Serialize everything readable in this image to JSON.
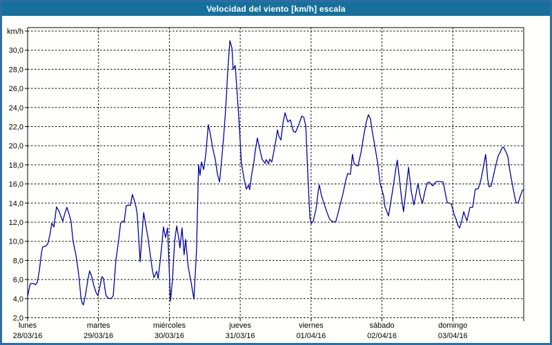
{
  "window": {
    "title": "Velocidad del viento [km/h] escala"
  },
  "chart_data": {
    "type": "line",
    "title": "Velocidad del viento [km/h] escala",
    "grid": "dashed",
    "legend": "none",
    "y_axis": {
      "unit_label": "km/h",
      "min": 2,
      "max": 32,
      "tick_step": 2,
      "tick_labels_top_to_bottom": [
        "30,0",
        "28,0",
        "26,0",
        "24,0",
        "22,0",
        "20,0",
        "18,0",
        "16,0",
        "14,0",
        "12,0",
        "10,0",
        "8,0",
        "6,0",
        "4,0",
        "2,0"
      ]
    },
    "x_axis": {
      "span_days": 7,
      "days": [
        {
          "name": "lunes",
          "date": "28/03/16"
        },
        {
          "name": "martes",
          "date": "29/03/16"
        },
        {
          "name": "miércoles",
          "date": "30/03/16"
        },
        {
          "name": "jueves",
          "date": "31/03/16"
        },
        {
          "name": "viernes",
          "date": "01/04/16"
        },
        {
          "name": "sábado",
          "date": "02/04/16"
        },
        {
          "name": "domingo",
          "date": "03/04/16"
        }
      ]
    },
    "series": {
      "name": "Velocidad del viento",
      "color": "#0000a0",
      "units": "km/h",
      "x_units": "hours_since_monday_0000",
      "points": [
        [
          0,
          4.2
        ],
        [
          0.5,
          5.0
        ],
        [
          0.9,
          5.55
        ],
        [
          1.9,
          5.6
        ],
        [
          2.6,
          5.45
        ],
        [
          3.3,
          5.7
        ],
        [
          4,
          7
        ],
        [
          4.7,
          8.8
        ],
        [
          5.1,
          9.4
        ],
        [
          6.1,
          9.5
        ],
        [
          6.8,
          9.7
        ],
        [
          7.5,
          10.6
        ],
        [
          8.2,
          11.9
        ],
        [
          8.9,
          11.5
        ],
        [
          9.8,
          13.6
        ],
        [
          10.7,
          13.1
        ],
        [
          11.9,
          12.1
        ],
        [
          12.6,
          12.9
        ],
        [
          13.3,
          13.55
        ],
        [
          14,
          12.9
        ],
        [
          14.7,
          12.1
        ],
        [
          15.4,
          10
        ],
        [
          16.4,
          8.5
        ],
        [
          17.1,
          7
        ],
        [
          17.5,
          5.95
        ],
        [
          18,
          4.3
        ],
        [
          18.5,
          3.5
        ],
        [
          18.9,
          3.35
        ],
        [
          19.6,
          4.4
        ],
        [
          20.3,
          5.8
        ],
        [
          21,
          6.9
        ],
        [
          21.7,
          6.3
        ],
        [
          22.4,
          5.4
        ],
        [
          23.1,
          4.7
        ],
        [
          23.8,
          4.3
        ],
        [
          24.5,
          5.3
        ],
        [
          25.2,
          6.3
        ],
        [
          25.7,
          6.1
        ],
        [
          26.2,
          5
        ],
        [
          26.6,
          4.3
        ],
        [
          27.3,
          4.05
        ],
        [
          28.3,
          4
        ],
        [
          29,
          4.3
        ],
        [
          29.9,
          8.05
        ],
        [
          30.8,
          10
        ],
        [
          31.5,
          11.9
        ],
        [
          32.2,
          12.1
        ],
        [
          32.7,
          12
        ],
        [
          33.4,
          13.7
        ],
        [
          34.1,
          13.8
        ],
        [
          34.8,
          13.75
        ],
        [
          35.5,
          14.9
        ],
        [
          36.2,
          14.2
        ],
        [
          36.7,
          13.6
        ],
        [
          37.1,
          12.85
        ],
        [
          37.6,
          10.5
        ],
        [
          38.1,
          7.85
        ],
        [
          38.8,
          11
        ],
        [
          39.3,
          13
        ],
        [
          40,
          11.7
        ],
        [
          40.7,
          10.5
        ],
        [
          41.6,
          8.5
        ],
        [
          42.3,
          6.9
        ],
        [
          42.8,
          6.2
        ],
        [
          43.7,
          6.85
        ],
        [
          44.2,
          6.1
        ],
        [
          45.1,
          8.5
        ],
        [
          46,
          11.5
        ],
        [
          46.7,
          10.4
        ],
        [
          47.4,
          11.4
        ],
        [
          47.9,
          7.5
        ],
        [
          48.4,
          3.75
        ],
        [
          49.1,
          6.1
        ],
        [
          49.8,
          10
        ],
        [
          50.5,
          11.6
        ],
        [
          51.2,
          10.3
        ],
        [
          51.6,
          9.3
        ],
        [
          52.3,
          11.4
        ],
        [
          53,
          8.6
        ],
        [
          53.5,
          10.2
        ],
        [
          54.4,
          7.3
        ],
        [
          55.4,
          5.65
        ],
        [
          56.3,
          3.95
        ],
        [
          57.2,
          9
        ],
        [
          57.9,
          18
        ],
        [
          58.4,
          16.9
        ],
        [
          58.9,
          18.3
        ],
        [
          59.6,
          17.5
        ],
        [
          60.3,
          19
        ],
        [
          61.2,
          22.2
        ],
        [
          61.9,
          21.2
        ],
        [
          62.6,
          19.9
        ],
        [
          63.6,
          18.5
        ],
        [
          64.3,
          17
        ],
        [
          65,
          16.2
        ],
        [
          65.7,
          18.5
        ],
        [
          66.4,
          21
        ],
        [
          67.1,
          24
        ],
        [
          67.8,
          28
        ],
        [
          68.5,
          31
        ],
        [
          69.2,
          30.2
        ],
        [
          69.6,
          28
        ],
        [
          70.3,
          28.4
        ],
        [
          71,
          25.3
        ],
        [
          71.7,
          22
        ],
        [
          72.4,
          18.1
        ],
        [
          73.4,
          16.4
        ],
        [
          74.1,
          15.45
        ],
        [
          74.8,
          15.9
        ],
        [
          75.2,
          15.4
        ],
        [
          75.9,
          17
        ],
        [
          76.6,
          18.2
        ],
        [
          77.1,
          19.5
        ],
        [
          77.8,
          20.8
        ],
        [
          78.5,
          19.8
        ],
        [
          79.4,
          18.6
        ],
        [
          80.4,
          18.15
        ],
        [
          80.8,
          18.55
        ],
        [
          81.6,
          18.1
        ],
        [
          82,
          18.6
        ],
        [
          82.7,
          18.3
        ],
        [
          83.4,
          19.4
        ],
        [
          84.1,
          20.6
        ],
        [
          84.6,
          21.65
        ],
        [
          85.1,
          21
        ],
        [
          85.8,
          20.6
        ],
        [
          86.5,
          22.4
        ],
        [
          87.2,
          23.45
        ],
        [
          88.1,
          22.5
        ],
        [
          89,
          22.7
        ],
        [
          90,
          21.5
        ],
        [
          90.7,
          21.4
        ],
        [
          91.8,
          22.15
        ],
        [
          92.8,
          23.1
        ],
        [
          93.5,
          23
        ],
        [
          94.2,
          22.05
        ],
        [
          94.9,
          17
        ],
        [
          95.6,
          12.5
        ],
        [
          96,
          11.85
        ],
        [
          96.7,
          12.1
        ],
        [
          97.7,
          13.4
        ],
        [
          98.4,
          15.2
        ],
        [
          98.8,
          15.9
        ],
        [
          99.5,
          14.8
        ],
        [
          100.5,
          13.85
        ],
        [
          101.4,
          13
        ],
        [
          102.3,
          12.3
        ],
        [
          103.3,
          12.05
        ],
        [
          104,
          12
        ],
        [
          104.4,
          12.1
        ],
        [
          105.1,
          12.9
        ],
        [
          105.8,
          13.8
        ],
        [
          106.8,
          15
        ],
        [
          107.7,
          16.3
        ],
        [
          108.4,
          17.1
        ],
        [
          109.3,
          17
        ],
        [
          110,
          19.1
        ],
        [
          110.5,
          18.2
        ],
        [
          111.2,
          17.95
        ],
        [
          111.9,
          17.9
        ],
        [
          112.9,
          19.3
        ],
        [
          113.8,
          21
        ],
        [
          114.7,
          22.5
        ],
        [
          115.4,
          23.25
        ],
        [
          116.1,
          22.8
        ],
        [
          116.8,
          21.3
        ],
        [
          117.3,
          20.5
        ],
        [
          118,
          19.2
        ],
        [
          118.7,
          17.9
        ],
        [
          119.4,
          16
        ],
        [
          119.9,
          15.5
        ],
        [
          120.6,
          14.7
        ],
        [
          121,
          13.6
        ],
        [
          121.7,
          13.1
        ],
        [
          122.2,
          12.65
        ],
        [
          123.1,
          14.3
        ],
        [
          124.1,
          16.3
        ],
        [
          124.8,
          17.8
        ],
        [
          125.2,
          18.5
        ],
        [
          125.9,
          16.6
        ],
        [
          126.6,
          14.6
        ],
        [
          127.3,
          13.1
        ],
        [
          128,
          15
        ],
        [
          129,
          17.75
        ],
        [
          129.9,
          15.3
        ],
        [
          130.8,
          13.8
        ],
        [
          131.5,
          14.9
        ],
        [
          132.2,
          16.05
        ],
        [
          132.9,
          14.8
        ],
        [
          133.7,
          13.95
        ],
        [
          134.6,
          15.3
        ],
        [
          135.3,
          16.1
        ],
        [
          136,
          16.2
        ],
        [
          137.2,
          15.8
        ],
        [
          138.3,
          16.25
        ],
        [
          139.5,
          16.25
        ],
        [
          140.7,
          16.2
        ],
        [
          141.4,
          15.1
        ],
        [
          142.1,
          14.05
        ],
        [
          142.8,
          14
        ],
        [
          143.5,
          13.9
        ],
        [
          144.4,
          12.85
        ],
        [
          145.1,
          12.3
        ],
        [
          145.8,
          11.6
        ],
        [
          146.3,
          11.4
        ],
        [
          147,
          12.1
        ],
        [
          147.7,
          13.1
        ],
        [
          148.1,
          12.7
        ],
        [
          148.8,
          12.15
        ],
        [
          149.8,
          13.55
        ],
        [
          150.7,
          13.55
        ],
        [
          151.6,
          15.45
        ],
        [
          152.6,
          15.5
        ],
        [
          153.5,
          16.4
        ],
        [
          154.2,
          17.5
        ],
        [
          155.1,
          19.1
        ],
        [
          155.8,
          16.5
        ],
        [
          156.3,
          15.7
        ],
        [
          157,
          15.8
        ],
        [
          157.7,
          16.8
        ],
        [
          158.4,
          17.75
        ],
        [
          159.3,
          18.9
        ],
        [
          160,
          19.3
        ],
        [
          160.7,
          19.8
        ],
        [
          161.2,
          19.85
        ],
        [
          161.9,
          19.4
        ],
        [
          162.6,
          18.9
        ],
        [
          163.3,
          17.4
        ],
        [
          164.3,
          15.7
        ],
        [
          165,
          14.6
        ],
        [
          165.4,
          14.05
        ],
        [
          166.1,
          14
        ],
        [
          166.8,
          14.7
        ],
        [
          167.5,
          15.3
        ],
        [
          168,
          15.45
        ]
      ]
    },
    "colors": {
      "titlebar_bg": "#17709c",
      "window_border": "#2e6da4",
      "background": "#fffffb",
      "grid": "#000000",
      "line": "#0000a0",
      "text": "#000000"
    }
  }
}
